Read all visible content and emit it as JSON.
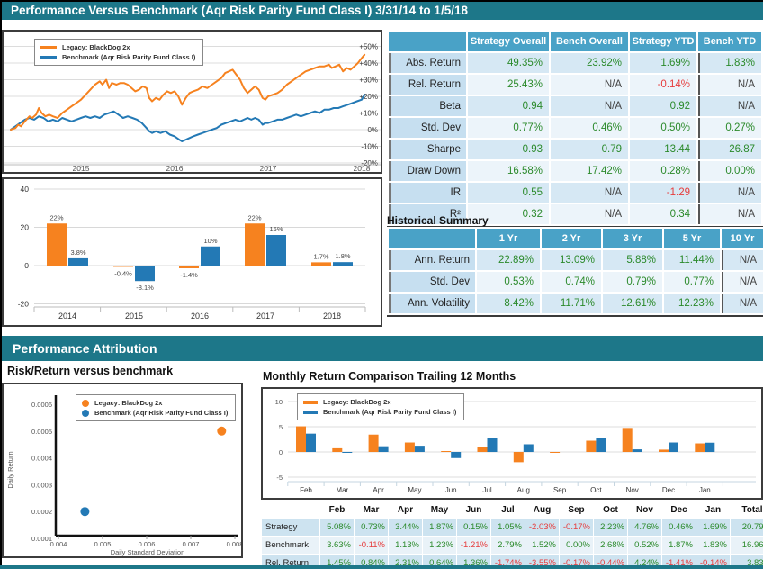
{
  "page": {
    "title": "Performance Versus Benchmark (Aqr Risk Parity Fund Class I) 3/31/14 to 1/5/18",
    "section2_title": "Performance Attribution"
  },
  "legend": {
    "strategy": "Legacy: BlackDog 2x",
    "benchmark": "Benchmark (Aqr Risk Parity Fund Class I)"
  },
  "colors": {
    "teal": "#1d7789",
    "table_header": "#49a2c7",
    "strategy_orange": "#f6821f",
    "benchmark_blue": "#2379b5",
    "positive_green": "#2b8a2b",
    "negative_red": "#e63c3c"
  },
  "metrics_table": {
    "columns": [
      "Strategy Overall",
      "Bench Overall",
      "Strategy YTD",
      "Bench YTD"
    ],
    "rows": [
      {
        "label": "Abs. Return",
        "values": [
          "49.35%",
          "23.92%",
          "1.69%",
          "1.83%"
        ]
      },
      {
        "label": "Rel. Return",
        "values": [
          "25.43%",
          "N/A",
          "-0.14%",
          "N/A"
        ]
      },
      {
        "label": "Beta",
        "values": [
          "0.94",
          "N/A",
          "0.92",
          "N/A"
        ]
      },
      {
        "label": "Std. Dev",
        "values": [
          "0.77%",
          "0.46%",
          "0.50%",
          "0.27%"
        ]
      },
      {
        "label": "Sharpe",
        "values": [
          "0.93",
          "0.79",
          "13.44",
          "26.87"
        ]
      },
      {
        "label": "Draw Down",
        "values": [
          "16.58%",
          "17.42%",
          "0.28%",
          "0.00%"
        ]
      },
      {
        "label": "IR",
        "values": [
          "0.55",
          "N/A",
          "-1.29",
          "N/A"
        ]
      },
      {
        "label": "R²",
        "values": [
          "0.32",
          "N/A",
          "0.34",
          "N/A"
        ]
      }
    ]
  },
  "historical_summary": {
    "title": "Historical Summary",
    "columns": [
      "1 Yr",
      "2 Yr",
      "3 Yr",
      "5 Yr",
      "10 Yr"
    ],
    "rows": [
      {
        "label": "Ann. Return",
        "values": [
          "22.89%",
          "13.09%",
          "5.88%",
          "11.44%",
          "N/A"
        ]
      },
      {
        "label": "Std. Dev",
        "values": [
          "0.53%",
          "0.74%",
          "0.79%",
          "0.77%",
          "N/A"
        ]
      },
      {
        "label": "Ann. Volatility",
        "values": [
          "8.42%",
          "11.71%",
          "12.61%",
          "12.23%",
          "N/A"
        ]
      }
    ]
  },
  "risk_return_title": "Risk/Return versus benchmark",
  "monthly_title": "Monthly Return Comparison Trailing 12 Months",
  "monthly_table": {
    "columns": [
      "Feb",
      "Mar",
      "Apr",
      "May",
      "Jun",
      "Jul",
      "Aug",
      "Sep",
      "Oct",
      "Nov",
      "Dec",
      "Jan",
      "Total"
    ],
    "rows": [
      {
        "label": "Strategy",
        "values": [
          "5.08%",
          "0.73%",
          "3.44%",
          "1.87%",
          "0.15%",
          "1.05%",
          "-2.03%",
          "-0.17%",
          "2.23%",
          "4.76%",
          "0.46%",
          "1.69%",
          "20.79%"
        ]
      },
      {
        "label": "Benchmark",
        "values": [
          "3.63%",
          "-0.11%",
          "1.13%",
          "1.23%",
          "-1.21%",
          "2.79%",
          "1.52%",
          "0.00%",
          "2.68%",
          "0.52%",
          "1.87%",
          "1.83%",
          "16.96%"
        ]
      },
      {
        "label": "Rel. Return",
        "values": [
          "1.45%",
          "0.84%",
          "2.31%",
          "0.64%",
          "1.36%",
          "-1.74%",
          "-3.55%",
          "-0.17%",
          "-0.44%",
          "4.24%",
          "-1.41%",
          "-0.14%",
          "3.83%"
        ]
      }
    ]
  },
  "chart_data": [
    {
      "id": "cumulative_return_line",
      "type": "line",
      "ylim": [
        -25,
        55
      ],
      "ytick_values": [
        50,
        40,
        30,
        20,
        10,
        0,
        -10,
        -20
      ],
      "ytick_labels": [
        "+50%",
        "+40%",
        "+30%",
        "+20%",
        "+10%",
        "0%",
        "-10%",
        "-20%"
      ],
      "x_ticks": [
        "2015",
        "2016",
        "2017",
        "2018"
      ],
      "legend_position": "top-left",
      "grid": true,
      "series": [
        {
          "name": "Benchmark (Aqr Risk Parity Fund Class I)",
          "color": "#2379b5",
          "points": [
            [
              2014.25,
              0
            ],
            [
              2014.3,
              2
            ],
            [
              2014.35,
              4
            ],
            [
              2014.4,
              6
            ],
            [
              2014.45,
              7
            ],
            [
              2014.5,
              6
            ],
            [
              2014.55,
              8
            ],
            [
              2014.6,
              7
            ],
            [
              2014.65,
              5
            ],
            [
              2014.7,
              6
            ],
            [
              2014.75,
              5
            ],
            [
              2014.8,
              7
            ],
            [
              2014.85,
              6
            ],
            [
              2014.9,
              5
            ],
            [
              2014.95,
              6
            ],
            [
              2015.0,
              7
            ],
            [
              2015.05,
              8
            ],
            [
              2015.1,
              7
            ],
            [
              2015.15,
              8
            ],
            [
              2015.2,
              7
            ],
            [
              2015.25,
              9
            ],
            [
              2015.3,
              10
            ],
            [
              2015.35,
              11
            ],
            [
              2015.4,
              9
            ],
            [
              2015.45,
              7
            ],
            [
              2015.5,
              8
            ],
            [
              2015.55,
              7
            ],
            [
              2015.6,
              6
            ],
            [
              2015.65,
              4
            ],
            [
              2015.7,
              1
            ],
            [
              2015.73,
              -1
            ],
            [
              2015.76,
              -2
            ],
            [
              2015.8,
              -1
            ],
            [
              2015.85,
              -2
            ],
            [
              2015.9,
              -1
            ],
            [
              2015.95,
              -3
            ],
            [
              2016.0,
              -4
            ],
            [
              2016.05,
              -6
            ],
            [
              2016.08,
              -7
            ],
            [
              2016.12,
              -6
            ],
            [
              2016.16,
              -5
            ],
            [
              2016.2,
              -4
            ],
            [
              2016.25,
              -3
            ],
            [
              2016.3,
              -2
            ],
            [
              2016.35,
              -1
            ],
            [
              2016.4,
              0
            ],
            [
              2016.45,
              1
            ],
            [
              2016.5,
              3
            ],
            [
              2016.55,
              4
            ],
            [
              2016.6,
              5
            ],
            [
              2016.65,
              6
            ],
            [
              2016.7,
              5
            ],
            [
              2016.74,
              6
            ],
            [
              2016.78,
              7
            ],
            [
              2016.82,
              6
            ],
            [
              2016.86,
              7
            ],
            [
              2016.9,
              6
            ],
            [
              2016.94,
              3
            ],
            [
              2016.97,
              4
            ],
            [
              2017.0,
              4
            ],
            [
              2017.05,
              5
            ],
            [
              2017.1,
              6
            ],
            [
              2017.15,
              6
            ],
            [
              2017.2,
              7
            ],
            [
              2017.25,
              8
            ],
            [
              2017.3,
              9
            ],
            [
              2017.35,
              8
            ],
            [
              2017.4,
              9
            ],
            [
              2017.45,
              10
            ],
            [
              2017.5,
              11
            ],
            [
              2017.55,
              10
            ],
            [
              2017.6,
              12
            ],
            [
              2017.65,
              12
            ],
            [
              2017.7,
              13
            ],
            [
              2017.75,
              13
            ],
            [
              2017.8,
              14
            ],
            [
              2017.85,
              15
            ],
            [
              2017.9,
              16
            ],
            [
              2017.95,
              17
            ],
            [
              2018.0,
              18
            ],
            [
              2018.03,
              21
            ]
          ]
        },
        {
          "name": "Legacy: BlackDog 2x",
          "color": "#f6821f",
          "points": [
            [
              2014.25,
              0
            ],
            [
              2014.3,
              1
            ],
            [
              2014.33,
              3
            ],
            [
              2014.36,
              2
            ],
            [
              2014.4,
              5
            ],
            [
              2014.45,
              8
            ],
            [
              2014.48,
              7
            ],
            [
              2014.52,
              9
            ],
            [
              2014.55,
              13
            ],
            [
              2014.58,
              10
            ],
            [
              2014.62,
              8
            ],
            [
              2014.66,
              9
            ],
            [
              2014.7,
              8
            ],
            [
              2014.75,
              7
            ],
            [
              2014.8,
              10
            ],
            [
              2014.85,
              12
            ],
            [
              2014.9,
              14
            ],
            [
              2014.95,
              16
            ],
            [
              2015.0,
              18
            ],
            [
              2015.05,
              21
            ],
            [
              2015.1,
              24
            ],
            [
              2015.15,
              27
            ],
            [
              2015.2,
              29
            ],
            [
              2015.23,
              27
            ],
            [
              2015.27,
              30
            ],
            [
              2015.3,
              25
            ],
            [
              2015.33,
              28
            ],
            [
              2015.38,
              27
            ],
            [
              2015.42,
              28
            ],
            [
              2015.46,
              28
            ],
            [
              2015.5,
              27
            ],
            [
              2015.54,
              25
            ],
            [
              2015.58,
              23
            ],
            [
              2015.62,
              24
            ],
            [
              2015.66,
              26
            ],
            [
              2015.7,
              25
            ],
            [
              2015.73,
              19
            ],
            [
              2015.76,
              17
            ],
            [
              2015.8,
              19
            ],
            [
              2015.84,
              18
            ],
            [
              2015.88,
              21
            ],
            [
              2015.92,
              23
            ],
            [
              2015.96,
              22
            ],
            [
              2016.0,
              23
            ],
            [
              2016.04,
              20
            ],
            [
              2016.08,
              15
            ],
            [
              2016.12,
              19
            ],
            [
              2016.16,
              22
            ],
            [
              2016.2,
              23
            ],
            [
              2016.25,
              24
            ],
            [
              2016.3,
              26
            ],
            [
              2016.35,
              25
            ],
            [
              2016.4,
              27
            ],
            [
              2016.45,
              29
            ],
            [
              2016.5,
              31
            ],
            [
              2016.54,
              34
            ],
            [
              2016.58,
              35
            ],
            [
              2016.62,
              36
            ],
            [
              2016.66,
              33
            ],
            [
              2016.7,
              30
            ],
            [
              2016.74,
              25
            ],
            [
              2016.78,
              22
            ],
            [
              2016.82,
              24
            ],
            [
              2016.86,
              26
            ],
            [
              2016.9,
              24
            ],
            [
              2016.94,
              19
            ],
            [
              2016.97,
              18
            ],
            [
              2017.0,
              20
            ],
            [
              2017.05,
              21
            ],
            [
              2017.1,
              22
            ],
            [
              2017.15,
              24
            ],
            [
              2017.2,
              27
            ],
            [
              2017.25,
              29
            ],
            [
              2017.3,
              31
            ],
            [
              2017.35,
              33
            ],
            [
              2017.4,
              35
            ],
            [
              2017.45,
              36
            ],
            [
              2017.5,
              37
            ],
            [
              2017.55,
              38
            ],
            [
              2017.6,
              38
            ],
            [
              2017.65,
              39
            ],
            [
              2017.68,
              37
            ],
            [
              2017.72,
              38
            ],
            [
              2017.76,
              39
            ],
            [
              2017.8,
              35
            ],
            [
              2017.84,
              37
            ],
            [
              2017.88,
              36
            ],
            [
              2017.92,
              38
            ],
            [
              2017.96,
              40
            ],
            [
              2018.0,
              43
            ],
            [
              2018.03,
              45
            ]
          ]
        }
      ]
    },
    {
      "id": "annual_returns_bar",
      "type": "bar",
      "categories": [
        "2014",
        "2015",
        "2016",
        "2017",
        "2018"
      ],
      "ytick_values": [
        -20,
        0,
        20,
        40
      ],
      "ylim": [
        -25,
        45
      ],
      "series": [
        {
          "name": "Legacy: BlackDog 2x",
          "color": "#f6821f",
          "values": [
            22,
            -0.4,
            -1.4,
            22,
            1.7
          ],
          "labels": [
            "22%",
            "-0.4%",
            "-1.4%",
            "22%",
            "1.7%"
          ]
        },
        {
          "name": "Benchmark (Aqr Risk Parity Fund Class I)",
          "color": "#2379b5",
          "values": [
            3.8,
            -8.1,
            10,
            16,
            1.8
          ],
          "labels": [
            "3.8%",
            "-8.1%",
            "10%",
            "16%",
            "1.8%"
          ]
        }
      ]
    },
    {
      "id": "risk_return_scatter",
      "type": "scatter",
      "title": "Risk/Return versus benchmark",
      "xlabel": "Daily Standard Deviation",
      "ylabel": "Daily Return",
      "xtick_values": [
        0.004,
        0.005,
        0.006,
        0.007,
        0.008
      ],
      "xtick_labels": [
        "0.004",
        "0.005",
        "0.006",
        "0.007",
        "0.008"
      ],
      "ytick_values": [
        0.0001,
        0.0002,
        0.0003,
        0.0004,
        0.0005,
        0.0006
      ],
      "ytick_labels": [
        "0.0001",
        "0.0002",
        "0.0003",
        "0.0004",
        "0.0005",
        "0.0006"
      ],
      "points": [
        {
          "name": "Legacy: BlackDog 2x",
          "color": "#f6821f",
          "x": 0.0077,
          "y": 0.0005
        },
        {
          "name": "Benchmark (Aqr Risk Parity Fund Class I)",
          "color": "#2379b5",
          "x": 0.0046,
          "y": 0.0002
        }
      ]
    },
    {
      "id": "monthly_return_bar",
      "type": "bar",
      "title": "Monthly Return Comparison Trailing 12 Months",
      "categories": [
        "Feb",
        "Mar",
        "Apr",
        "May",
        "Jun",
        "Jul",
        "Aug",
        "Sep",
        "Oct",
        "Nov",
        "Dec",
        "Jan"
      ],
      "ytick_values": [
        -5,
        0,
        5,
        10
      ],
      "ylim": [
        -7,
        12
      ],
      "series": [
        {
          "name": "Legacy: BlackDog 2x",
          "color": "#f6821f",
          "values": [
            5.08,
            0.73,
            3.44,
            1.87,
            0.15,
            1.05,
            -2.03,
            -0.17,
            2.23,
            4.76,
            0.46,
            1.69
          ]
        },
        {
          "name": "Benchmark (Aqr Risk Parity Fund Class I)",
          "color": "#2379b5",
          "values": [
            3.63,
            -0.11,
            1.13,
            1.23,
            -1.21,
            2.79,
            1.52,
            0.0,
            2.68,
            0.52,
            1.87,
            1.83
          ]
        }
      ]
    }
  ]
}
